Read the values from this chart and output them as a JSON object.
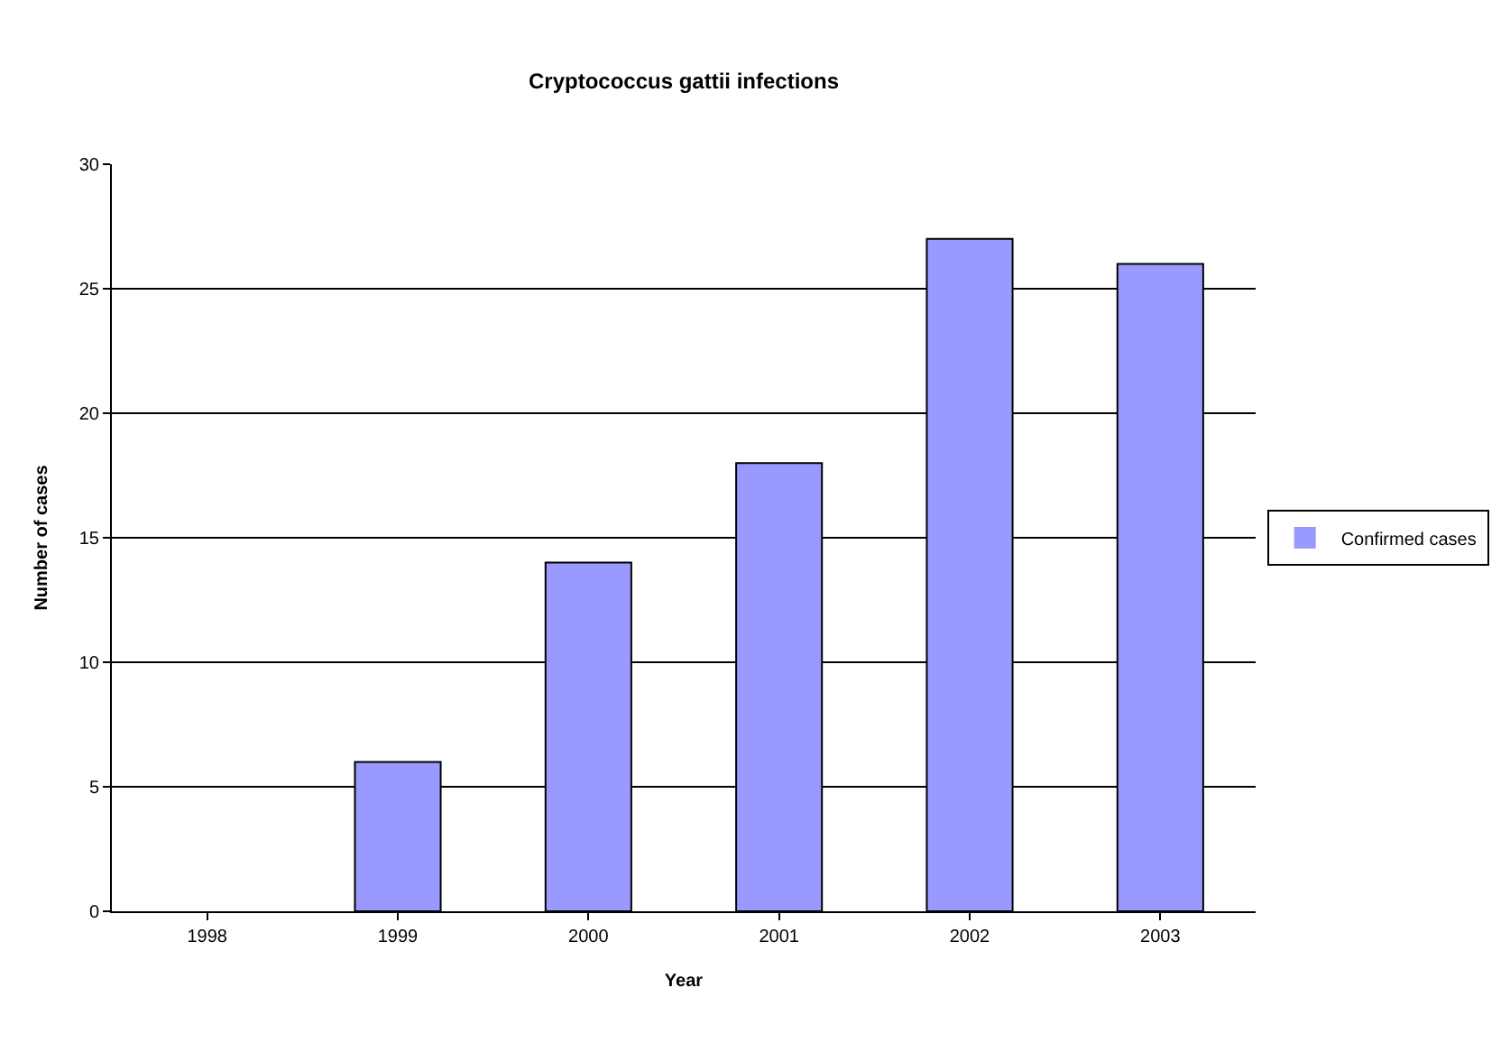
{
  "chart_data": {
    "type": "bar",
    "title": "Cryptococcus gattii infections",
    "xlabel": "Year",
    "ylabel": "Number of cases",
    "categories": [
      "1998",
      "1999",
      "2000",
      "2001",
      "2002",
      "2003"
    ],
    "series": [
      {
        "name": "Confirmed cases",
        "color": "#9999ff",
        "values": [
          0,
          6,
          14,
          18,
          27,
          26
        ]
      }
    ],
    "ylim": [
      0,
      30
    ],
    "yticks": [
      0,
      5,
      10,
      15,
      20,
      25,
      30
    ],
    "grid": "y",
    "legend": "right"
  }
}
